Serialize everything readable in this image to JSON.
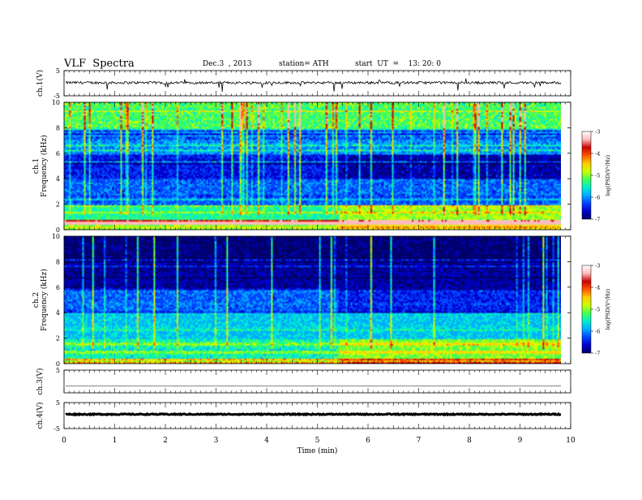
{
  "header": {
    "title": "VLF  Spectra",
    "date": "Dec.3  , 2013",
    "station": "station= ATH",
    "start": "start  UT  =    13: 20: 0"
  },
  "colors": {
    "colormap": [
      "#000066",
      "#0000cc",
      "#0044ff",
      "#00aaff",
      "#00eecc",
      "#44ff55",
      "#ccff00",
      "#ffcc00",
      "#ff5500",
      "#cc0000",
      "#ffbbbb",
      "#ffffff"
    ],
    "trace": "#000000"
  },
  "chart_data": [
    {
      "type": "line",
      "ylabel": "ch.1(V)",
      "ylim": [
        -5,
        5
      ],
      "yticks": [
        "5",
        "-5"
      ],
      "description_values": {
        "mean": 0.2,
        "amplitude": 1.0,
        "spikes_down_to": -3.5
      }
    },
    {
      "type": "heatmap",
      "ylabel": "ch.1\nFrequency (kHz)",
      "ylim": [
        0,
        10
      ],
      "yticks": [
        "0",
        "2",
        "4",
        "6",
        "8",
        "10"
      ],
      "xlim": [
        0,
        9.8
      ],
      "colorbar": {
        "label": "log(PSD(V²/Hz)",
        "range": [
          -7,
          -3
        ],
        "ticks": [
          "-3",
          "-4",
          "-5",
          "-6",
          "-7"
        ]
      },
      "levels_by_frequency": [
        {
          "f_khz": [
            0,
            0.4
          ],
          "log_psd": -4.5
        },
        {
          "f_khz": [
            0.4,
            0.8
          ],
          "log_psd": -3.4
        },
        {
          "f_khz": [
            0.8,
            2.0
          ],
          "log_psd": -5.2
        },
        {
          "f_khz": [
            2.0,
            4.0
          ],
          "log_psd": -6.0
        },
        {
          "f_khz": [
            4.0,
            6.0
          ],
          "log_psd": -6.3
        },
        {
          "f_khz": [
            6.0,
            8.0
          ],
          "log_psd": -5.8
        },
        {
          "f_khz": [
            8.0,
            10.0
          ],
          "log_psd": -5.0
        }
      ]
    },
    {
      "type": "heatmap",
      "ylabel": "ch.2\nFrequency (kHz)",
      "ylim": [
        0,
        10
      ],
      "yticks": [
        "0",
        "2",
        "4",
        "6",
        "8",
        "10"
      ],
      "xlim": [
        0,
        9.8
      ],
      "colorbar": {
        "label": "log(PSD(V²/Hz)",
        "range": [
          -7,
          -3
        ],
        "ticks": [
          "-3",
          "-4",
          "-5",
          "-6",
          "-7"
        ]
      },
      "levels_by_frequency": [
        {
          "f_khz": [
            0,
            0.4
          ],
          "log_psd": -4.2
        },
        {
          "f_khz": [
            0.4,
            2.0
          ],
          "log_psd": -5.3
        },
        {
          "f_khz": [
            2.0,
            4.0
          ],
          "log_psd": -5.6
        },
        {
          "f_khz": [
            4.0,
            6.0
          ],
          "log_psd": -6.0
        },
        {
          "f_khz": [
            6.0,
            8.0
          ],
          "log_psd": -6.6
        },
        {
          "f_khz": [
            8.0,
            10.0
          ],
          "log_psd": -6.8
        }
      ]
    },
    {
      "type": "line",
      "ylabel": "ch.3(V)",
      "ylim": [
        -5,
        5
      ],
      "yticks": [
        "5"
      ],
      "description_values": {
        "mean": -2.0,
        "amplitude": 0.05
      }
    },
    {
      "type": "line",
      "ylabel": "ch.4(V)",
      "ylim": [
        -5,
        5
      ],
      "yticks": [
        "5",
        "-5"
      ],
      "description_values": {
        "mean": 0.5,
        "amplitude": 0.4
      }
    }
  ],
  "x_axis": {
    "label": "Time  (min)",
    "ticks": [
      "0",
      "1",
      "2",
      "3",
      "4",
      "5",
      "6",
      "7",
      "8",
      "9",
      "10"
    ],
    "range": [
      0,
      10
    ]
  }
}
